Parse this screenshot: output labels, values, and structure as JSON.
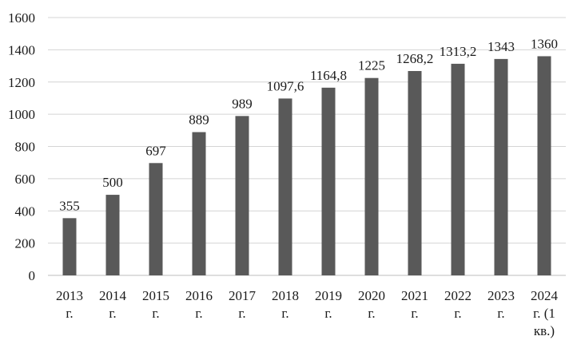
{
  "chart_data": {
    "type": "bar",
    "categories": [
      [
        "2013",
        "г."
      ],
      [
        "2014",
        "г."
      ],
      [
        "2015",
        "г."
      ],
      [
        "2016",
        "г."
      ],
      [
        "2017",
        "г."
      ],
      [
        "2018",
        "г."
      ],
      [
        "2019",
        "г."
      ],
      [
        "2020",
        "г."
      ],
      [
        "2021",
        "г."
      ],
      [
        "2022",
        "г."
      ],
      [
        "2023",
        "г."
      ],
      [
        "2024",
        "г. (1",
        "кв.)"
      ]
    ],
    "values": [
      355,
      500,
      697,
      889,
      989,
      1097.6,
      1164.8,
      1225,
      1268.2,
      1313.2,
      1343,
      1360
    ],
    "value_labels": [
      "355",
      "500",
      "697",
      "889",
      "989",
      "1097,6",
      "1164,8",
      "1225",
      "1268,2",
      "1313,2",
      "1343",
      "1360"
    ],
    "ylim": [
      0,
      1600
    ],
    "yticks": [
      0,
      200,
      400,
      600,
      800,
      1000,
      1200,
      1400,
      1600
    ],
    "title": "",
    "xlabel": "",
    "ylabel": "",
    "grid": true,
    "legend": "none",
    "colors": {
      "bar": "#595959",
      "grid": "#d4d4d4",
      "text": "#1a1a1a"
    }
  }
}
